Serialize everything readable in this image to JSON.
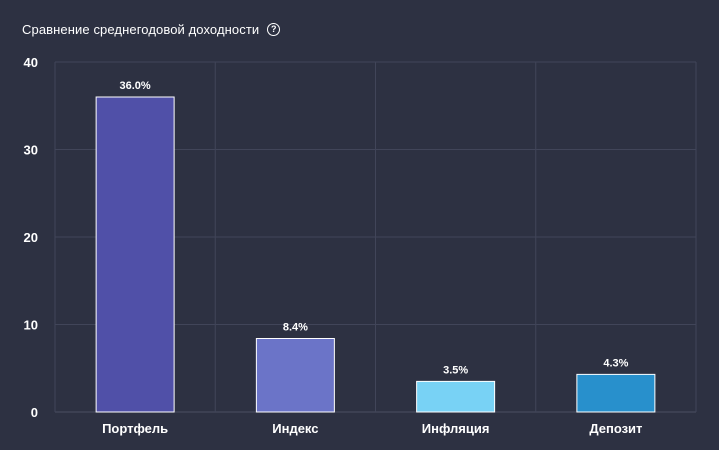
{
  "header": {
    "title": "Сравнение среднегодовой доходности",
    "help_icon": "question-circle-icon"
  },
  "chart_data": {
    "type": "bar",
    "title": "Сравнение среднегодовой доходности",
    "categories": [
      "Портфель",
      "Индекс",
      "Инфляция",
      "Депозит"
    ],
    "values": [
      36.0,
      8.4,
      3.5,
      4.3
    ],
    "data_labels": [
      "36.0%",
      "8.4%",
      "3.5%",
      "4.3%"
    ],
    "colors": [
      "#5050a8",
      "#6b74c8",
      "#78d2f5",
      "#2890cc"
    ],
    "ylim": [
      0,
      40
    ],
    "yticks": [
      0,
      10,
      20,
      30,
      40
    ],
    "grid": true,
    "xlabel": "",
    "ylabel": ""
  }
}
